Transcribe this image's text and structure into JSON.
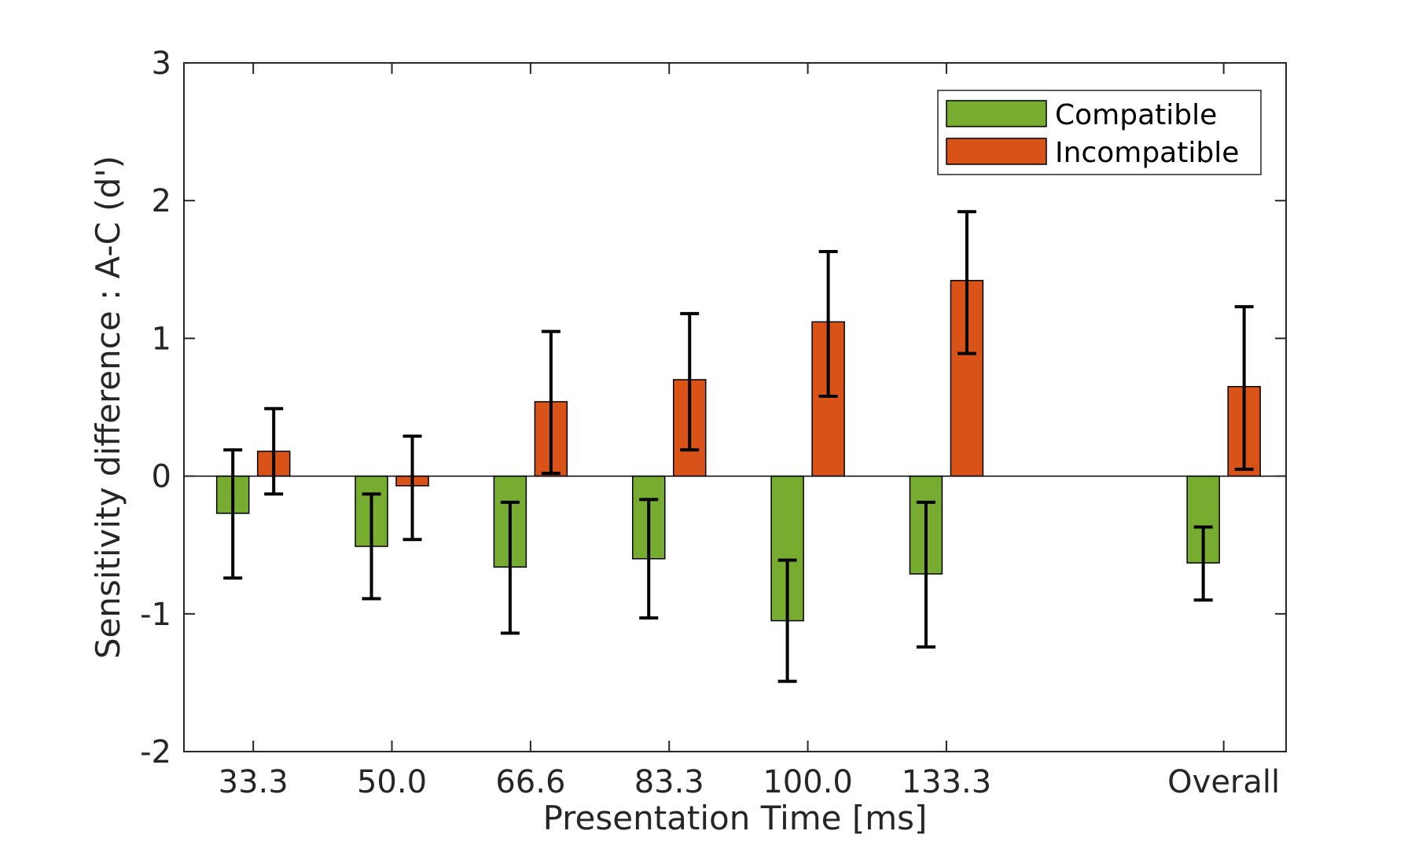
{
  "chart_data": {
    "type": "bar",
    "categories": [
      "33.3",
      "50.0",
      "66.6",
      "83.3",
      "100.0",
      "133.3",
      "Overall"
    ],
    "x_positions": [
      1,
      2,
      3,
      4,
      5,
      6,
      8
    ],
    "xlabel": "Presentation Time [ms]",
    "ylabel": "Sensitivity difference : A-C (d')",
    "xlim": [
      0.5,
      8.45
    ],
    "ylim": [
      -2,
      3
    ],
    "yticks": [
      -2,
      -1,
      0,
      1,
      2,
      3
    ],
    "ytick_labels": [
      "-2",
      "-1",
      "0",
      "1",
      "2",
      "3"
    ],
    "grid": false,
    "legend_position": "top-right",
    "series": [
      {
        "name": "Compatible",
        "color": "#77AC30",
        "values": [
          -0.27,
          -0.51,
          -0.66,
          -0.6,
          -1.05,
          -0.71,
          -0.63
        ],
        "error_low": [
          -0.74,
          -0.89,
          -1.14,
          -1.03,
          -1.49,
          -1.24,
          -0.9
        ],
        "error_high": [
          0.19,
          -0.13,
          -0.19,
          -0.17,
          -0.61,
          -0.19,
          -0.37
        ]
      },
      {
        "name": "Incompatible",
        "color": "#D95319",
        "values": [
          0.18,
          -0.07,
          0.54,
          0.7,
          1.12,
          1.42,
          0.65
        ],
        "error_low": [
          -0.13,
          -0.46,
          0.02,
          0.19,
          0.58,
          0.89,
          0.05
        ],
        "error_high": [
          0.49,
          0.29,
          1.05,
          1.18,
          1.63,
          1.92,
          1.23
        ]
      }
    ]
  }
}
